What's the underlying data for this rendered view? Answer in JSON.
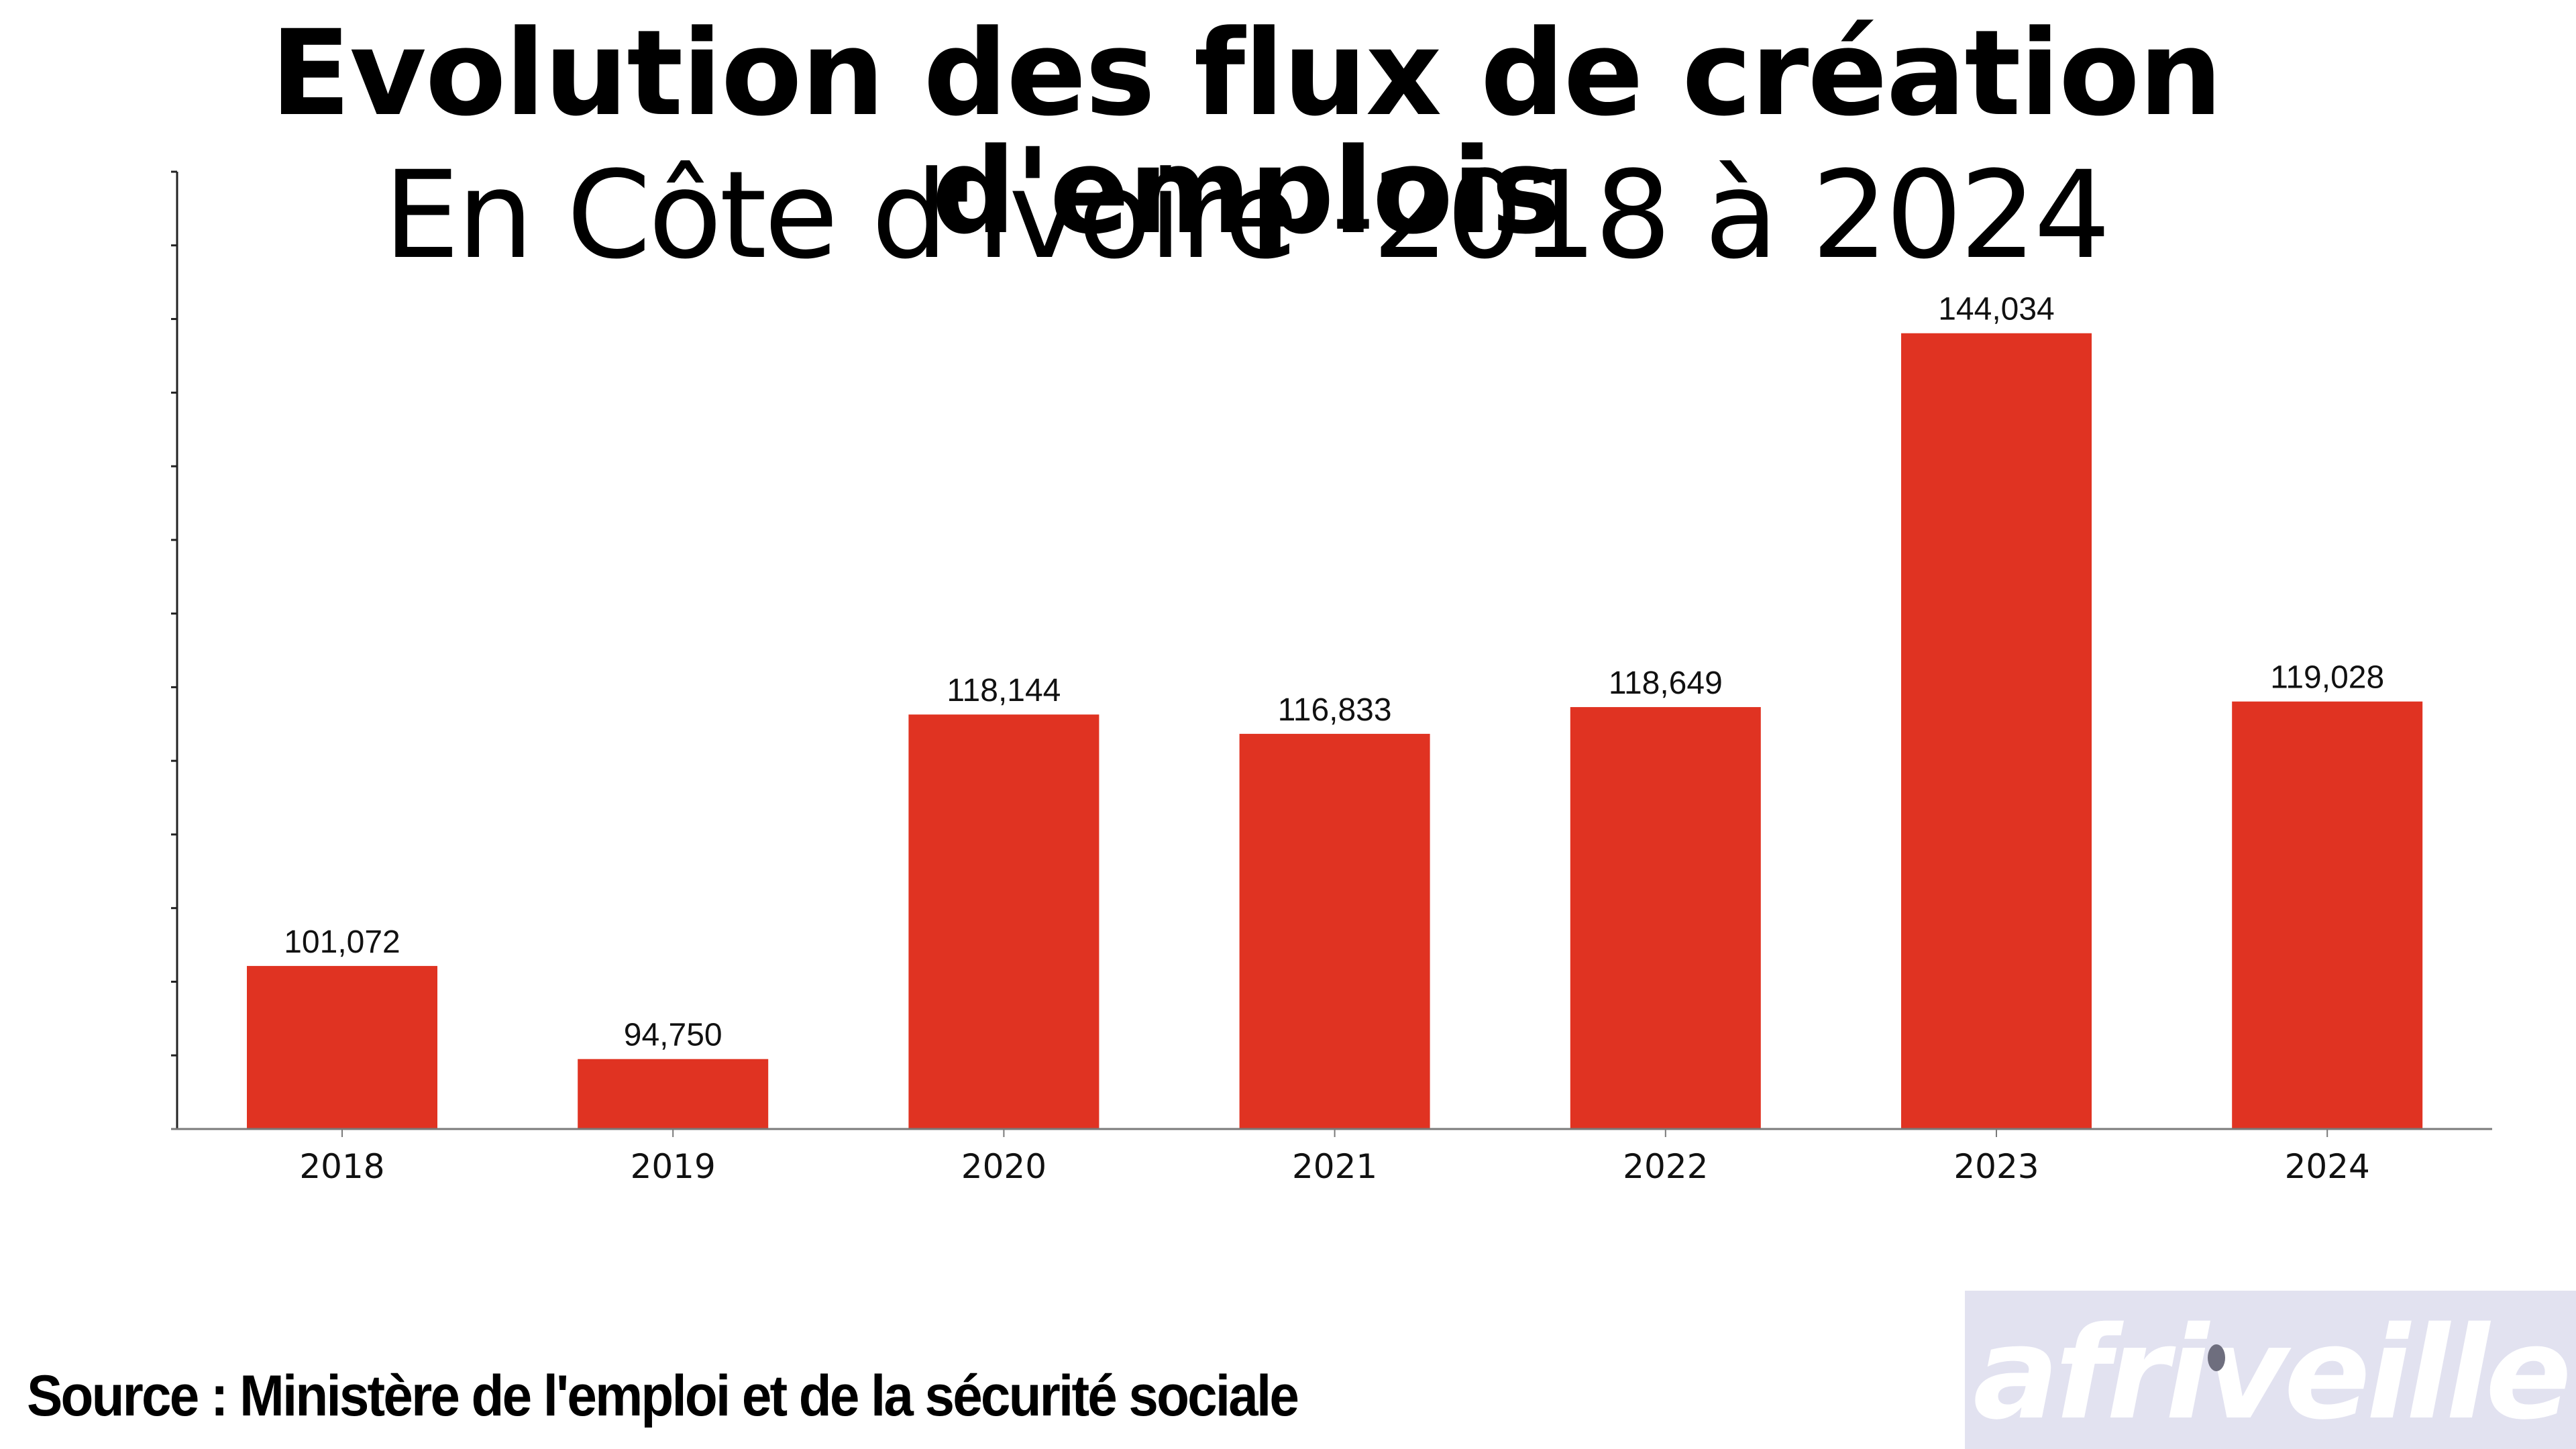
{
  "title": "Evolution des flux de création d'emplois",
  "subtitle": "En Côte d'Ivoire -2018 à 2024",
  "source": "Source : Ministère de l'emploi et de la sécurité sociale",
  "logo": {
    "text": "afriveille",
    "background": "#e2e2f0",
    "dot_color": "#6e6e7e"
  },
  "colors": {
    "bar": "#e03322",
    "axis": "#222222",
    "baseline": "#7a7a7a",
    "text": "#111111"
  },
  "chart_data": {
    "type": "bar",
    "title": "Evolution des flux de création d'emplois",
    "subtitle": "En Côte d'Ivoire -2018 à 2024",
    "xlabel": "",
    "ylabel": "",
    "categories": [
      "2018",
      "2019",
      "2020",
      "2021",
      "2022",
      "2023",
      "2024"
    ],
    "values": [
      101072,
      94750,
      118144,
      116833,
      118649,
      144034,
      119028
    ],
    "value_labels": [
      "101,072",
      "94,750",
      "118,144",
      "116,833",
      "118,649",
      "144,034",
      "119,028"
    ],
    "ylim": [
      90000,
      155000
    ],
    "ytick_step": 5000,
    "ytick_labels_visible": false,
    "grid": false,
    "legend": "none"
  }
}
